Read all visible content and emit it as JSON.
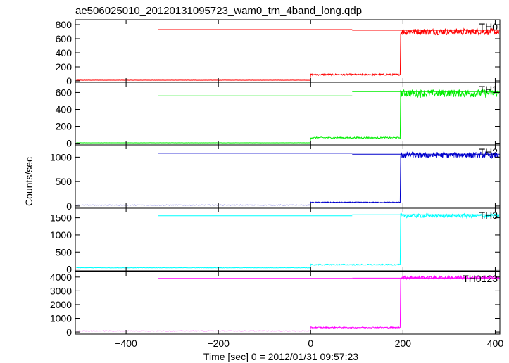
{
  "chart_data": {
    "type": "line",
    "title": "ae506025010_20120131095723_wam0_trn_4band_long.qdp",
    "xlabel": "Time [sec] 0 = 2012/01/31 09:57:23",
    "ylabel": "Counts/sec",
    "xlim": [
      -510,
      410
    ],
    "xticks": [
      -400,
      -200,
      0,
      200,
      400
    ],
    "grid": false,
    "panels": [
      {
        "name": "TH0",
        "color": "#ff0000",
        "ylim": [
          -20,
          870
        ],
        "yticks": [
          0,
          200,
          400,
          600,
          800
        ],
        "base": 10,
        "mid": 90,
        "high": 700,
        "noise_high": 45,
        "upper_left": 730,
        "upper_right": 720
      },
      {
        "name": "TH1",
        "color": "#00ee00",
        "ylim": [
          -20,
          720
        ],
        "yticks": [
          0,
          200,
          400,
          600
        ],
        "base": 5,
        "mid": 65,
        "high": 590,
        "noise_high": 45,
        "upper_left": 560,
        "upper_right": 610
      },
      {
        "name": "TH2",
        "color": "#0000cc",
        "ylim": [
          -30,
          1250
        ],
        "yticks": [
          0,
          500,
          1000
        ],
        "base": 20,
        "mid": 75,
        "high": 1040,
        "noise_high": 60,
        "upper_left": 1080,
        "upper_right": 1060
      },
      {
        "name": "TH3",
        "color": "#00ffff",
        "ylim": [
          -50,
          1780
        ],
        "yticks": [
          0,
          500,
          1000,
          1500
        ],
        "base": 40,
        "mid": 130,
        "high": 1560,
        "noise_high": 55,
        "upper_left": 1560,
        "upper_right": 1590
      },
      {
        "name": "TH0123",
        "color": "#ff00ff",
        "ylim": [
          -150,
          4400
        ],
        "yticks": [
          0,
          1000,
          2000,
          3000,
          4000
        ],
        "base": 80,
        "mid": 330,
        "high": 3960,
        "noise_high": 110,
        "upper_left": 3900,
        "upper_right": 3920
      }
    ],
    "events": {
      "step1_x": 0,
      "step2_x": 195,
      "upper_start_x": -330,
      "upper_break_x": 90
    }
  }
}
